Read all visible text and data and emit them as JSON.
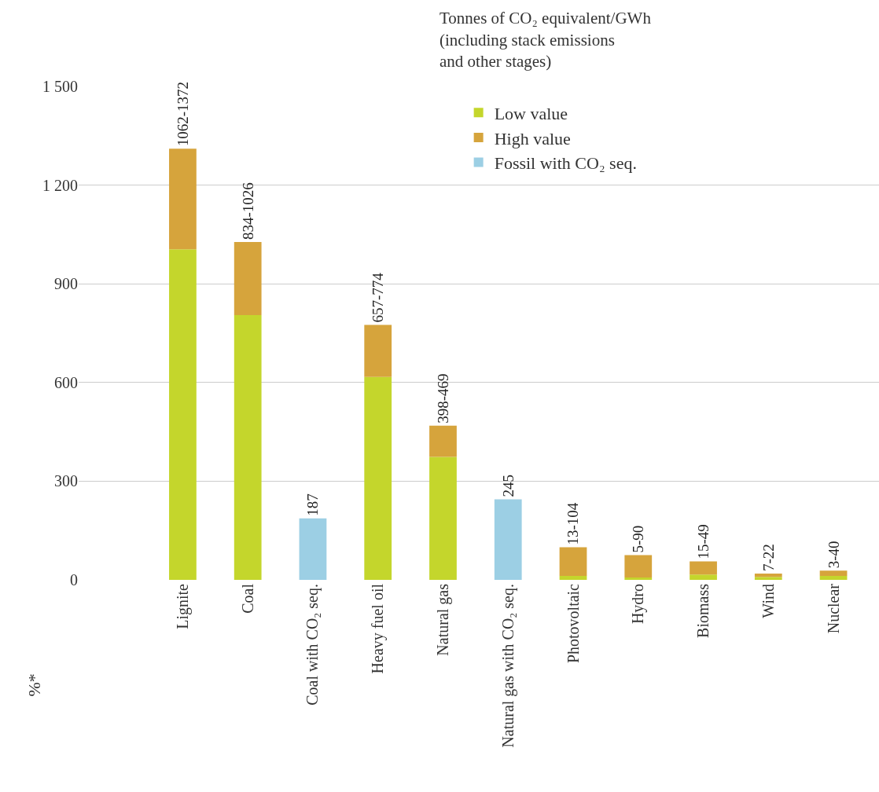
{
  "chart_data": {
    "type": "bar",
    "stacked": true,
    "title": "Tonnes of CO₂ equivalent/GWh\n(including stack emissions\nand other stages)",
    "categories": [
      "Lignite",
      "Coal",
      "Coal with CO₂ seq.",
      "Heavy fuel oil",
      "Natural gas",
      "Natural gas with CO₂ seq.",
      "Photovoltaic",
      "Hydro",
      "Biomass",
      "Wind",
      "Nuclear"
    ],
    "series": [
      {
        "name": "Low value",
        "color": "#c4d62c",
        "values": [
          1005,
          805,
          null,
          617,
          374,
          null,
          12,
          7,
          16,
          9,
          12
        ]
      },
      {
        "name": "High value",
        "color": "#d6a43c",
        "values": [
          306,
          222,
          null,
          158,
          95,
          null,
          87,
          68,
          40,
          10,
          16
        ],
        "value_labels": [
          "1062-1372",
          "834-1026",
          null,
          "657-774",
          "398-469",
          null,
          "13-104",
          "5-90",
          "15-49",
          "7-22",
          "3-40"
        ]
      },
      {
        "name": "Fossil with CO₂ seq.",
        "color": "#9ccfe4",
        "values": [
          null,
          null,
          187,
          null,
          null,
          245,
          null,
          null,
          null,
          null,
          null
        ],
        "value_labels": [
          null,
          null,
          "187",
          null,
          null,
          "245",
          null,
          null,
          null,
          null,
          null
        ]
      }
    ],
    "ylim": [
      0,
      1500
    ],
    "yticks": [
      0,
      300,
      600,
      900,
      {
        "value": 1200,
        "label": "1 200"
      },
      {
        "value": 1500,
        "label": "1 500"
      }
    ],
    "grid": "y",
    "legend": "top right",
    "annotations": [
      "%*"
    ]
  }
}
